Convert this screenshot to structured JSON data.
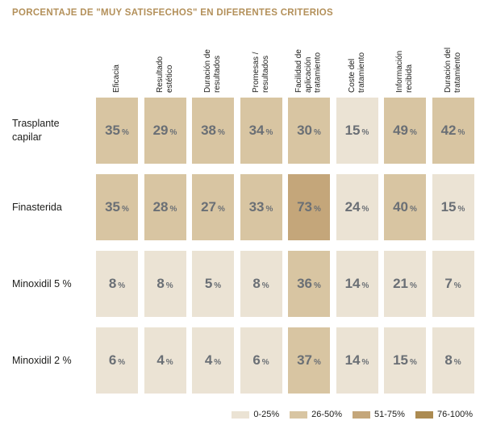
{
  "title": "PORCENTAJE DE \"MUY SATISFECHOS\" EN DIFERENTES CRITERIOS",
  "colors": {
    "title": "#B3905A",
    "value_text": "#6A6F75",
    "label_text": "#1D1D1B",
    "background": "#FFFFFF"
  },
  "chart_data": {
    "type": "heatmap",
    "title": "PORCENTAJE DE \"MUY SATISFECHOS\" EN DIFERENTES CRITERIOS",
    "unit": "%",
    "columns": [
      "Eficacia",
      "Resultado estético",
      "Duración de resultados",
      "Promesas / resultados",
      "Facilidad de aplicación tratamiento",
      "Coste del tratamiento",
      "Información recibida",
      "Duración del tratamiento"
    ],
    "rows": [
      {
        "label": "Trasplante capilar",
        "values": [
          35,
          29,
          38,
          34,
          30,
          15,
          49,
          42
        ]
      },
      {
        "label": "Finasterida",
        "values": [
          35,
          28,
          27,
          33,
          73,
          24,
          40,
          15
        ]
      },
      {
        "label": "Minoxidil 5 %",
        "values": [
          8,
          8,
          5,
          8,
          36,
          14,
          21,
          7
        ]
      },
      {
        "label": "Minoxidil 2 %",
        "values": [
          6,
          4,
          4,
          6,
          37,
          14,
          15,
          8
        ]
      }
    ],
    "legend": [
      {
        "label": "0-25%",
        "color": "#EBE3D4",
        "range": [
          0,
          25
        ]
      },
      {
        "label": "26-50%",
        "color": "#D8C5A2",
        "range": [
          26,
          50
        ]
      },
      {
        "label": "51-75%",
        "color": "#C4A67A",
        "range": [
          51,
          75
        ]
      },
      {
        "label": "76-100%",
        "color": "#AC8B51",
        "range": [
          76,
          100
        ]
      }
    ],
    "legend_position": "bottom-right"
  }
}
